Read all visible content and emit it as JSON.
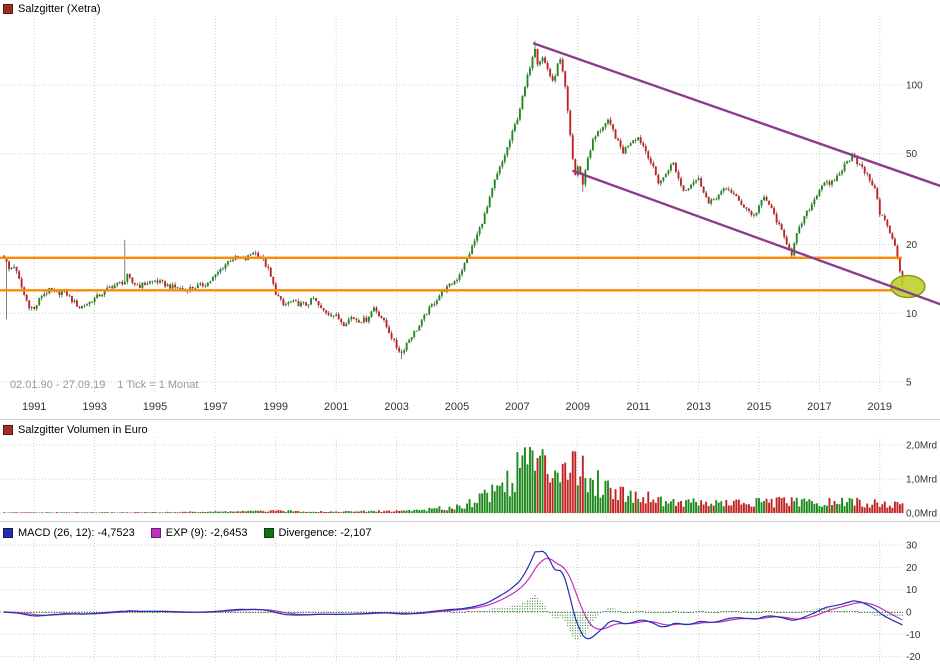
{
  "window": {
    "title": "Salzgitter (Xetra)"
  },
  "colors": {
    "series_marker": "#9e2f23",
    "up": "#1e8a1e",
    "down": "#c32222",
    "wick": "#4a4a4a",
    "hline": "#ff8a00",
    "trendline": "#8b3d8b",
    "ellipse_fill": "#bdd02e",
    "ellipse_stroke": "#8a9a1c",
    "macd_line": "#2030b0",
    "signal_line": "#c030c0",
    "divergence": "#157015",
    "grid": "#cccccc",
    "zero_line": "#777777",
    "axis_text": "#333333",
    "muted_text": "#999999",
    "separator": "#cccccc"
  },
  "price_panel": {
    "legend": "Salzgitter (Xetra)",
    "range_label": "02.01.90 - 27.09.19",
    "tick_label": "1 Tick = 1 Monat"
  },
  "volume_panel": {
    "legend": "Salzgitter Volumen in Euro"
  },
  "macd_panel": {
    "items": [
      {
        "label": "MACD (26, 12): -4,7523",
        "color": "#2030b0"
      },
      {
        "label": "EXP (9): -2,6453",
        "color": "#c030c0"
      },
      {
        "label": "Divergence: -2,107",
        "color": "#157015"
      }
    ]
  },
  "chart_data": [
    {
      "type": "candlestick",
      "scale": "log",
      "title": "Salzgitter (Xetra), monthly candles",
      "x_range": [
        1990.0,
        2019.75
      ],
      "y_ticks": [
        {
          "v": 100,
          "label": "100"
        },
        {
          "v": 50,
          "label": "50"
        },
        {
          "v": 20,
          "label": "20"
        },
        {
          "v": 10,
          "label": "10"
        },
        {
          "v": 5,
          "label": "5"
        }
      ],
      "x_ticks": [
        1991,
        1993,
        1995,
        1997,
        1999,
        2001,
        2003,
        2005,
        2007,
        2009,
        2011,
        2013,
        2015,
        2017,
        2019
      ],
      "hlines": [
        {
          "price": 17.5
        },
        {
          "price": 12.6
        }
      ],
      "trendlines": [
        {
          "from": [
            2007.55,
            152
          ],
          "to": [
            2021.3,
            35
          ]
        },
        {
          "from": [
            2008.85,
            42
          ],
          "to": [
            2021.3,
            10.6
          ]
        }
      ],
      "ellipse": {
        "year": 2019.93,
        "price": 13.1
      },
      "close_anchors": [
        [
          1990.0,
          17.8
        ],
        [
          1990.17,
          15.5
        ],
        [
          1990.33,
          16.2
        ],
        [
          1990.5,
          14.0
        ],
        [
          1990.67,
          12.0
        ],
        [
          1990.83,
          10.8
        ],
        [
          1991.0,
          10.4
        ],
        [
          1991.25,
          12.0
        ],
        [
          1991.5,
          12.6
        ],
        [
          1991.75,
          12.2
        ],
        [
          1992.0,
          12.5
        ],
        [
          1992.25,
          11.4
        ],
        [
          1992.5,
          10.6
        ],
        [
          1992.75,
          11.0
        ],
        [
          1993.0,
          11.6
        ],
        [
          1993.25,
          12.2
        ],
        [
          1993.5,
          13.0
        ],
        [
          1993.75,
          13.4
        ],
        [
          1994.0,
          13.8
        ],
        [
          1994.08,
          14.5
        ],
        [
          1994.25,
          13.6
        ],
        [
          1994.5,
          13.2
        ],
        [
          1994.75,
          13.6
        ],
        [
          1995.0,
          13.9
        ],
        [
          1995.25,
          13.5
        ],
        [
          1995.5,
          13.1
        ],
        [
          1995.75,
          12.9
        ],
        [
          1996.0,
          12.7
        ],
        [
          1996.25,
          13.0
        ],
        [
          1996.5,
          13.2
        ],
        [
          1996.75,
          13.6
        ],
        [
          1997.0,
          14.6
        ],
        [
          1997.25,
          16.0
        ],
        [
          1997.5,
          17.2
        ],
        [
          1997.75,
          17.6
        ],
        [
          1998.0,
          17.2
        ],
        [
          1998.25,
          18.6
        ],
        [
          1998.5,
          17.8
        ],
        [
          1998.75,
          15.5
        ],
        [
          1999.0,
          12.3
        ],
        [
          1999.25,
          10.8
        ],
        [
          1999.5,
          11.2
        ],
        [
          1999.75,
          11.0
        ],
        [
          2000.0,
          10.9
        ],
        [
          2000.25,
          11.6
        ],
        [
          2000.5,
          10.4
        ],
        [
          2000.75,
          10.0
        ],
        [
          2001.0,
          9.7
        ],
        [
          2001.25,
          9.0
        ],
        [
          2001.5,
          9.6
        ],
        [
          2001.75,
          9.3
        ],
        [
          2002.0,
          9.4
        ],
        [
          2002.25,
          10.6
        ],
        [
          2002.5,
          9.6
        ],
        [
          2002.75,
          8.3
        ],
        [
          2003.0,
          7.1
        ],
        [
          2003.17,
          6.7
        ],
        [
          2003.33,
          7.4
        ],
        [
          2003.5,
          8.0
        ],
        [
          2003.75,
          8.8
        ],
        [
          2004.0,
          10.1
        ],
        [
          2004.25,
          11.2
        ],
        [
          2004.5,
          12.4
        ],
        [
          2004.75,
          13.2
        ],
        [
          2005.0,
          14.2
        ],
        [
          2005.25,
          16.4
        ],
        [
          2005.5,
          19.5
        ],
        [
          2005.75,
          23.5
        ],
        [
          2006.0,
          29.0
        ],
        [
          2006.25,
          38.0
        ],
        [
          2006.5,
          46.0
        ],
        [
          2006.75,
          57.0
        ],
        [
          2007.0,
          72.0
        ],
        [
          2007.17,
          88.0
        ],
        [
          2007.33,
          108.0
        ],
        [
          2007.5,
          135.0
        ],
        [
          2007.58,
          148.0
        ],
        [
          2007.67,
          125.0
        ],
        [
          2007.83,
          132.0
        ],
        [
          2008.0,
          118.0
        ],
        [
          2008.17,
          102.0
        ],
        [
          2008.33,
          122.0
        ],
        [
          2008.42,
          128.0
        ],
        [
          2008.58,
          98.0
        ],
        [
          2008.67,
          75.0
        ],
        [
          2008.83,
          48.0
        ],
        [
          2008.92,
          40.0
        ],
        [
          2009.0,
          44.0
        ],
        [
          2009.17,
          37.0
        ],
        [
          2009.33,
          48.0
        ],
        [
          2009.5,
          57.0
        ],
        [
          2009.67,
          62.0
        ],
        [
          2009.83,
          66.0
        ],
        [
          2010.0,
          69.0
        ],
        [
          2010.17,
          63.0
        ],
        [
          2010.33,
          56.0
        ],
        [
          2010.5,
          51.0
        ],
        [
          2010.67,
          55.0
        ],
        [
          2010.83,
          58.0
        ],
        [
          2011.0,
          59.0
        ],
        [
          2011.17,
          54.0
        ],
        [
          2011.33,
          49.0
        ],
        [
          2011.5,
          43.0
        ],
        [
          2011.67,
          37.5
        ],
        [
          2011.83,
          39.0
        ],
        [
          2012.0,
          43.0
        ],
        [
          2012.17,
          45.5
        ],
        [
          2012.33,
          39.0
        ],
        [
          2012.5,
          34.5
        ],
        [
          2012.67,
          36.0
        ],
        [
          2012.83,
          38.0
        ],
        [
          2013.0,
          38.5
        ],
        [
          2013.17,
          34.5
        ],
        [
          2013.33,
          30.0
        ],
        [
          2013.5,
          31.5
        ],
        [
          2013.67,
          33.0
        ],
        [
          2013.83,
          34.5
        ],
        [
          2014.0,
          35.0
        ],
        [
          2014.17,
          33.0
        ],
        [
          2014.33,
          31.0
        ],
        [
          2014.5,
          29.5
        ],
        [
          2014.67,
          28.0
        ],
        [
          2014.83,
          26.5
        ],
        [
          2015.0,
          29.5
        ],
        [
          2015.17,
          32.0
        ],
        [
          2015.33,
          30.0
        ],
        [
          2015.5,
          27.0
        ],
        [
          2015.67,
          24.0
        ],
        [
          2015.83,
          21.5
        ],
        [
          2016.0,
          19.5
        ],
        [
          2016.08,
          18.2
        ],
        [
          2016.25,
          22.0
        ],
        [
          2016.42,
          25.0
        ],
        [
          2016.58,
          27.5
        ],
        [
          2016.75,
          30.0
        ],
        [
          2016.92,
          33.5
        ],
        [
          2017.0,
          35.0
        ],
        [
          2017.17,
          38.0
        ],
        [
          2017.33,
          36.0
        ],
        [
          2017.5,
          38.5
        ],
        [
          2017.67,
          41.0
        ],
        [
          2017.83,
          44.5
        ],
        [
          2018.0,
          47.5
        ],
        [
          2018.08,
          50.5
        ],
        [
          2018.25,
          46.0
        ],
        [
          2018.42,
          43.0
        ],
        [
          2018.58,
          40.0
        ],
        [
          2018.75,
          37.0
        ],
        [
          2018.92,
          32.0
        ],
        [
          2019.0,
          27.5
        ],
        [
          2019.17,
          25.5
        ],
        [
          2019.33,
          22.5
        ],
        [
          2019.5,
          19.5
        ],
        [
          2019.58,
          17.5
        ],
        [
          2019.67,
          15.3
        ],
        [
          2019.75,
          13.4
        ]
      ],
      "wick_events": [
        [
          1990.08,
          "low",
          9.4
        ],
        [
          1994.04,
          "high",
          21.0
        ],
        [
          2003.17,
          "low",
          6.3
        ],
        [
          2007.58,
          "high",
          156.0
        ],
        [
          2008.42,
          "high",
          131.0
        ],
        [
          2009.17,
          "low",
          34.0
        ],
        [
          2016.08,
          "low",
          17.3
        ],
        [
          2019.75,
          "low",
          12.6
        ]
      ]
    },
    {
      "type": "bar",
      "title": "Salzgitter Volumen in Euro",
      "unit": "Mrd",
      "y_ticks": [
        {
          "v": 2,
          "label": "2,0Mrd"
        },
        {
          "v": 1,
          "label": "1,0Mrd"
        },
        {
          "v": 0,
          "label": "0,0Mrd"
        }
      ],
      "anchors": [
        [
          1990,
          0.015
        ],
        [
          1993,
          0.018
        ],
        [
          1995,
          0.02
        ],
        [
          1997,
          0.04
        ],
        [
          1999,
          0.06
        ],
        [
          2000,
          0.05
        ],
        [
          2001,
          0.04
        ],
        [
          2002,
          0.05
        ],
        [
          2003,
          0.06
        ],
        [
          2004,
          0.1
        ],
        [
          2004.8,
          0.16
        ],
        [
          2005.2,
          0.22
        ],
        [
          2005.6,
          0.38
        ],
        [
          2006,
          0.55
        ],
        [
          2006.5,
          0.85
        ],
        [
          2006.8,
          1.0
        ],
        [
          2007,
          1.2
        ],
        [
          2007.25,
          1.85
        ],
        [
          2007.5,
          1.55
        ],
        [
          2007.75,
          1.35
        ],
        [
          2008,
          1.25
        ],
        [
          2008.3,
          1.45
        ],
        [
          2008.6,
          1.7
        ],
        [
          2008.9,
          1.5
        ],
        [
          2009.1,
          1.15
        ],
        [
          2009.5,
          1.0
        ],
        [
          2010,
          0.75
        ],
        [
          2010.5,
          0.6
        ],
        [
          2011,
          0.5
        ],
        [
          2011.5,
          0.45
        ],
        [
          2012,
          0.33
        ],
        [
          2013,
          0.3
        ],
        [
          2014,
          0.28
        ],
        [
          2015,
          0.3
        ],
        [
          2016,
          0.33
        ],
        [
          2017,
          0.28
        ],
        [
          2018,
          0.33
        ],
        [
          2019,
          0.26
        ],
        [
          2019.75,
          0.22
        ]
      ]
    },
    {
      "type": "macd",
      "slow": 26,
      "fast": 12,
      "signal": 9,
      "current": {
        "macd": -4.7523,
        "exp": -2.6453,
        "divergence": -2.107
      },
      "y_ticks": [
        {
          "v": 30,
          "label": "30"
        },
        {
          "v": 20,
          "label": "20"
        },
        {
          "v": 10,
          "label": "10"
        },
        {
          "v": 0,
          "label": "0"
        },
        {
          "v": -10,
          "label": "-10"
        },
        {
          "v": -20,
          "label": "-20"
        }
      ]
    }
  ]
}
